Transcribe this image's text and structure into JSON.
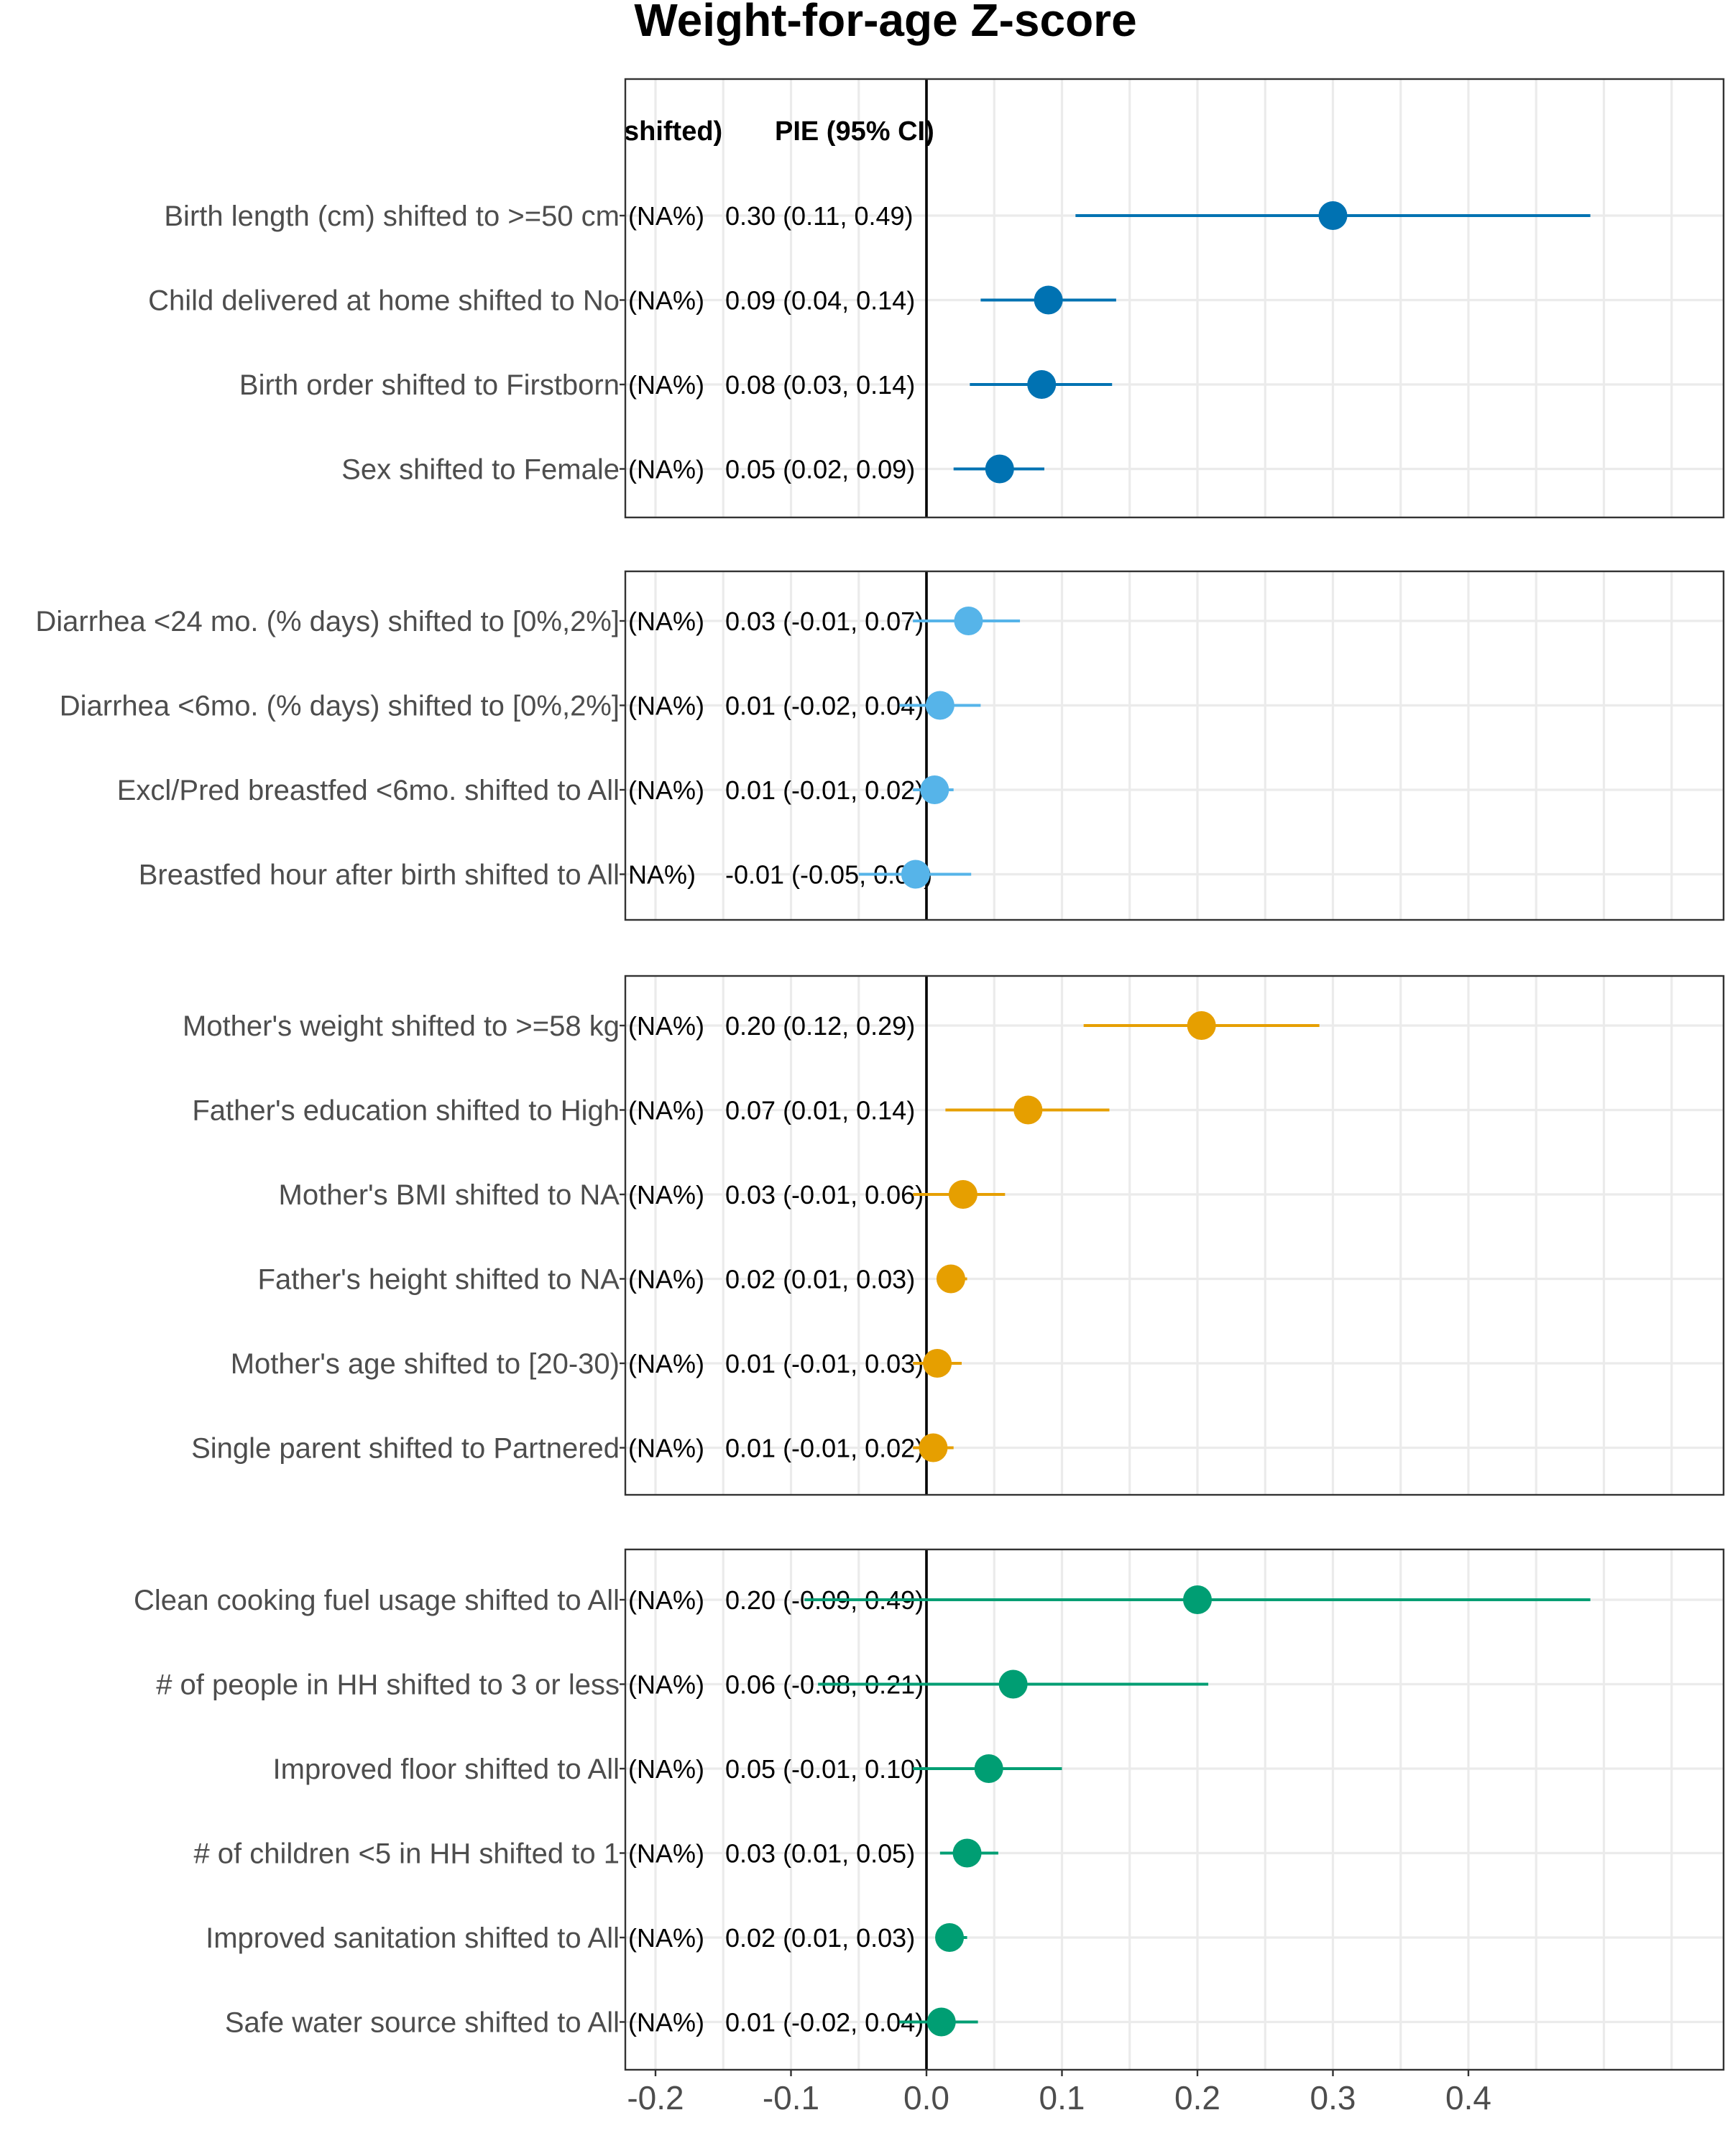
{
  "chart_data": {
    "type": "forest",
    "title": "Weight-for-age Z-score",
    "xlabel": "",
    "ylabel": "",
    "xlim": [
      -0.22,
      0.59
    ],
    "xticks": [
      "-0.2",
      "-0.1",
      "0.0",
      "0.1",
      "0.2",
      "0.3",
      "0.4"
    ],
    "xtick_values": [
      -0.2,
      -0.1,
      0.0,
      0.1,
      0.2,
      0.3,
      0.4
    ],
    "grid": true,
    "column_headers": [
      "shifted)",
      "PIE (95% CI)"
    ],
    "panels": [
      {
        "color": "#0072B2",
        "rows": [
          {
            "label": "Birth length (cm) shifted to >=50 cm",
            "na": "(NA%)",
            "pie_text": "0.30 (0.11, 0.49)",
            "est": 0.3,
            "lo": 0.11,
            "hi": 0.49
          },
          {
            "label": "Child delivered at home shifted to No",
            "na": "(NA%)",
            "pie_text": "0.09 (0.04, 0.14)",
            "est": 0.09,
            "lo": 0.04,
            "hi": 0.14
          },
          {
            "label": "Birth order shifted to Firstborn",
            "na": "(NA%)",
            "pie_text": "0.08 (0.03, 0.14)",
            "est": 0.085,
            "lo": 0.032,
            "hi": 0.137
          },
          {
            "label": "Sex shifted to Female",
            "na": "(NA%)",
            "pie_text": "0.05 (0.02, 0.09)",
            "est": 0.054,
            "lo": 0.02,
            "hi": 0.087
          }
        ]
      },
      {
        "color": "#56B4E9",
        "rows": [
          {
            "label": "Diarrhea <24 mo.  (% days) shifted to [0%,2%]",
            "na": "(NA%)",
            "pie_text": "0.03 (-0.01, 0.07)",
            "est": 0.031,
            "lo": -0.01,
            "hi": 0.069
          },
          {
            "label": "Diarrhea <6mo. (% days) shifted to [0%,2%]",
            "na": "(NA%)",
            "pie_text": "0.01 (-0.02, 0.04)",
            "est": 0.01,
            "lo": -0.02,
            "hi": 0.04
          },
          {
            "label": "Excl/Pred breastfed <6mo. shifted to All",
            "na": "(NA%)",
            "pie_text": "0.01 (-0.01, 0.02)",
            "est": 0.006,
            "lo": -0.01,
            "hi": 0.02
          },
          {
            "label": "Breastfed hour after birth shifted to All",
            "na": "NA%)",
            "pie_text": "-0.01 (-0.05, 0.03)",
            "est": -0.008,
            "lo": -0.05,
            "hi": 0.033
          }
        ]
      },
      {
        "color": "#E69F00",
        "rows": [
          {
            "label": "Mother's weight shifted to >=58 kg",
            "na": "(NA%)",
            "pie_text": "0.20 (0.12, 0.29)",
            "est": 0.203,
            "lo": 0.116,
            "hi": 0.29
          },
          {
            "label": "Father's education shifted to High",
            "na": "(NA%)",
            "pie_text": "0.07 (0.01, 0.14)",
            "est": 0.075,
            "lo": 0.014,
            "hi": 0.135
          },
          {
            "label": "Mother's BMI shifted to NA",
            "na": "(NA%)",
            "pie_text": "0.03 (-0.01, 0.06)",
            "est": 0.027,
            "lo": -0.01,
            "hi": 0.058
          },
          {
            "label": "Father's height shifted to NA",
            "na": "(NA%)",
            "pie_text": "0.02 (0.01, 0.03)",
            "est": 0.018,
            "lo": 0.01,
            "hi": 0.03
          },
          {
            "label": "Mother's age shifted to [20-30)",
            "na": "(NA%)",
            "pie_text": "0.01 (-0.01, 0.03)",
            "est": 0.008,
            "lo": -0.01,
            "hi": 0.026
          },
          {
            "label": "Single parent shifted to Partnered",
            "na": "(NA%)",
            "pie_text": "0.01 (-0.01, 0.02)",
            "est": 0.005,
            "lo": -0.01,
            "hi": 0.02
          }
        ]
      },
      {
        "color": "#009E73",
        "rows": [
          {
            "label": "Clean cooking fuel usage shifted to All",
            "na": "(NA%)",
            "pie_text": "0.20 (-0.09, 0.49)",
            "est": 0.2,
            "lo": -0.09,
            "hi": 0.49
          },
          {
            "label": "# of people in HH shifted to 3 or less",
            "na": "(NA%)",
            "pie_text": "0.06 (-0.08, 0.21)",
            "est": 0.064,
            "lo": -0.08,
            "hi": 0.208
          },
          {
            "label": "Improved floor shifted to All",
            "na": "(NA%)",
            "pie_text": "0.05 (-0.01, 0.10)",
            "est": 0.046,
            "lo": -0.01,
            "hi": 0.1
          },
          {
            "label": "# of children <5 in HH shifted to 1",
            "na": "(NA%)",
            "pie_text": "0.03 (0.01, 0.05)",
            "est": 0.03,
            "lo": 0.01,
            "hi": 0.053
          },
          {
            "label": "Improved sanitation shifted to All",
            "na": "(NA%)",
            "pie_text": "0.02 (0.01, 0.03)",
            "est": 0.017,
            "lo": 0.008,
            "hi": 0.03
          },
          {
            "label": "Safe water source shifted to All",
            "na": "(NA%)",
            "pie_text": "0.01 (-0.02, 0.04)",
            "est": 0.011,
            "lo": -0.02,
            "hi": 0.038
          }
        ]
      }
    ]
  }
}
